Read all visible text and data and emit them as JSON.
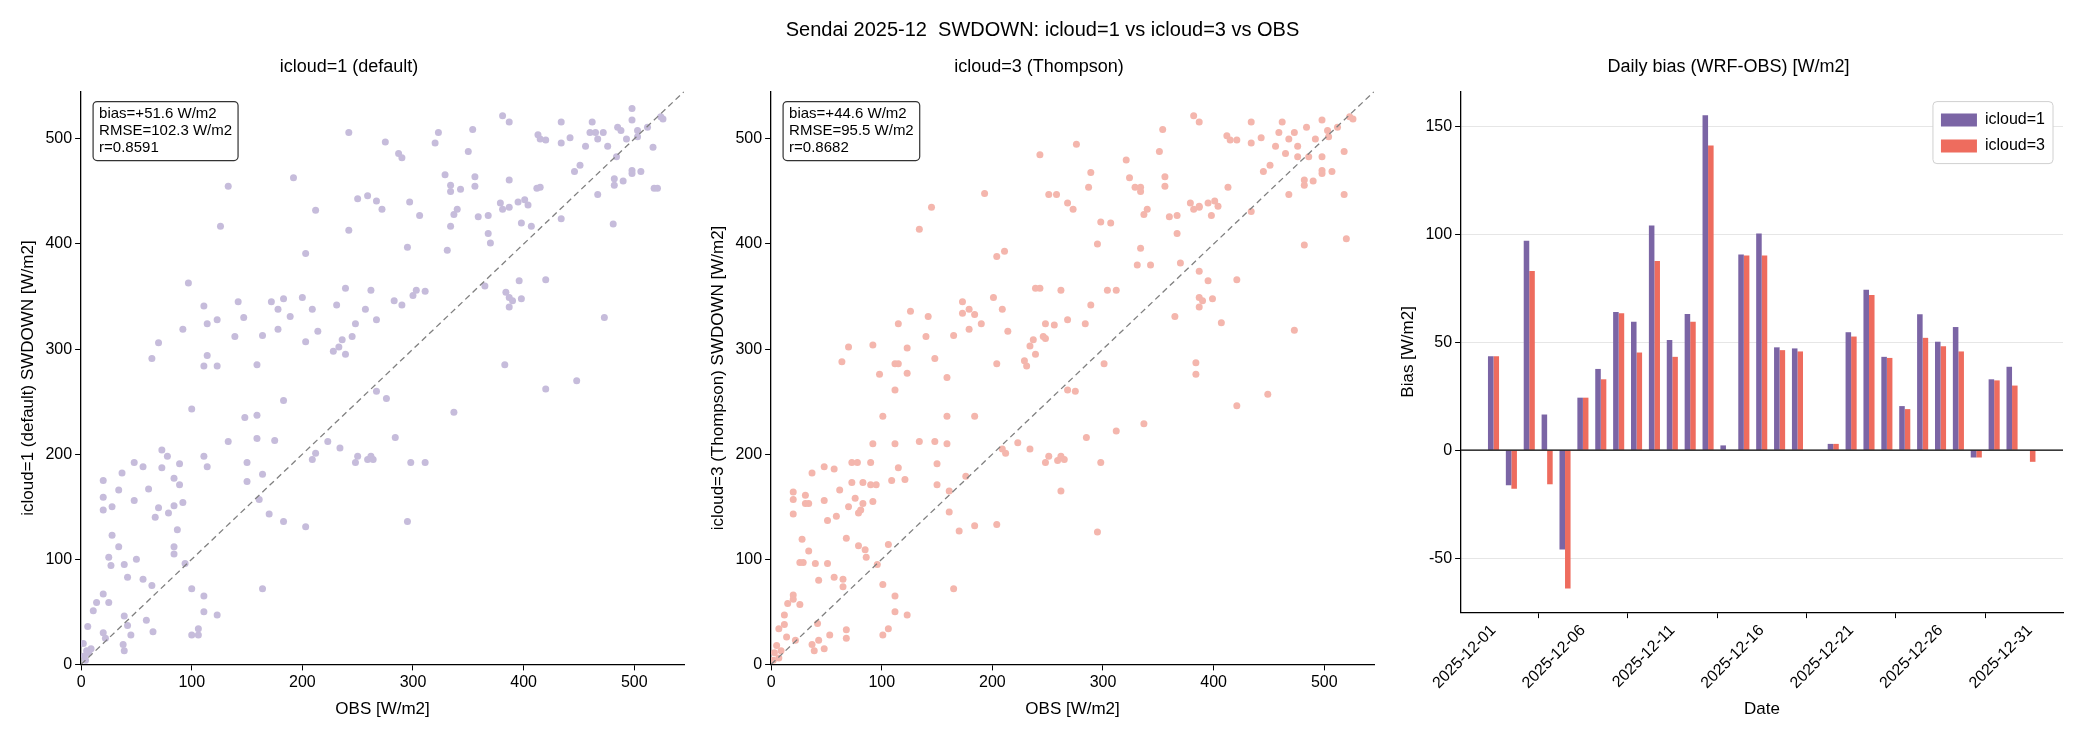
{
  "chart_data": [
    {
      "type": "other",
      "title": "Sendai 2025-12  SWDOWN: icloud=1 vs icloud=3 vs OBS"
    },
    {
      "type": "scatter",
      "title": "icloud=1 (default)",
      "xlabel": "OBS [W/m2]",
      "ylabel": "icloud=1 (default) SWDOWN [W/m2]",
      "xlim": [
        0,
        545
      ],
      "ylim": [
        0,
        545
      ],
      "xticks": [
        0,
        100,
        200,
        300,
        400,
        500
      ],
      "yticks": [
        0,
        100,
        200,
        300,
        400,
        500
      ],
      "marker": "circle",
      "annotations": [
        "bias=+51.6 W/m2\nRMSE=102.3 W/m2\nr=0.8591"
      ],
      "series": [
        {
          "type": "scatter",
          "color": "#c6bcdb",
          "x": [
            3,
            5,
            7,
            2,
            9,
            4,
            6,
            11,
            14,
            20,
            20,
            22,
            25,
            20,
            20,
            20,
            28,
            34,
            28,
            34,
            25,
            27,
            37,
            39,
            42,
            39,
            42,
            38,
            39,
            45,
            48,
            48,
            50,
            56,
            56,
            59,
            61,
            64,
            64,
            65,
            67,
            70,
            70,
            73,
            73,
            78,
            79,
            84,
            84,
            84,
            84,
            87,
            89,
            89,
            92,
            92,
            94,
            97,
            100,
            100,
            100,
            106,
            106,
            111,
            111,
            111,
            111,
            111,
            114,
            114,
            114,
            123,
            123,
            123,
            126,
            133,
            133,
            139,
            142,
            147,
            148,
            150,
            150,
            159,
            159,
            159,
            161,
            164,
            164,
            164,
            170,
            172,
            175,
            178,
            178,
            183,
            183,
            183,
            189,
            192,
            200,
            203,
            203,
            203,
            209,
            209,
            212,
            212,
            214,
            223,
            228,
            231,
            233,
            234,
            236,
            239,
            239,
            242,
            242,
            245,
            248,
            248,
            250,
            250,
            257,
            259,
            259,
            262,
            262,
            264,
            267,
            267,
            267,
            272,
            275,
            276,
            283,
            284,
            287,
            290,
            290,
            295,
            295,
            297,
            298,
            300,
            303,
            306,
            311,
            311,
            320,
            323,
            329,
            331,
            334,
            334,
            334,
            337,
            337,
            340,
            343,
            350,
            354,
            356,
            356,
            359,
            365,
            368,
            368,
            370,
            379,
            381,
            381,
            383,
            384,
            387,
            387,
            387,
            387,
            387,
            390,
            395,
            396,
            398,
            398,
            401,
            404,
            407,
            412,
            413,
            415,
            415,
            420,
            420,
            420,
            434,
            434,
            434,
            442,
            446,
            448,
            451,
            456,
            460,
            462,
            465,
            467,
            467,
            472,
            473,
            476,
            481,
            482,
            482,
            484,
            485,
            488,
            490,
            493,
            498,
            498,
            498,
            498,
            503,
            503,
            506,
            512,
            517,
            518,
            521,
            524,
            526
          ],
          "values": [
            8,
            13,
            11,
            20,
            15,
            4,
            36,
            51,
            59,
            67,
            30,
            25,
            59,
            147,
            159,
            175,
            150,
            166,
            123,
            112,
            102,
            94,
            182,
            95,
            83,
            46,
            37,
            19,
            13,
            28,
            192,
            156,
            100,
            188,
            81,
            42,
            167,
            291,
            75,
            31,
            140,
            306,
            149,
            204,
            187,
            198,
            144,
            177,
            151,
            112,
            105,
            128,
            191,
            171,
            319,
            154,
            96,
            363,
            243,
            72,
            28,
            28,
            34,
            341,
            284,
            198,
            65,
            50,
            324,
            294,
            188,
            328,
            284,
            47,
            417,
            455,
            212,
            312,
            345,
            330,
            235,
            192,
            174,
            285,
            237,
            215,
            157,
            181,
            72,
            313,
            143,
            345,
            213,
            338,
            319,
            348,
            251,
            136,
            331,
            463,
            349,
            307,
            391,
            131,
            338,
            195,
            432,
            201,
            317,
            212,
            298,
            342,
            302,
            206,
            309,
            358,
            295,
            413,
            506,
            312,
            324,
            192,
            443,
            198,
            338,
            446,
            195,
            356,
            198,
            195,
            441,
            328,
            260,
            433,
            497,
            253,
            346,
            216,
            486,
            482,
            342,
            397,
            136,
            440,
            192,
            351,
            356,
            427,
            355,
            192,
            496,
            506,
            466,
            394,
            456,
            450,
            417,
            240,
            428,
            433,
            452,
            488,
            509,
            464,
            455,
            426,
            360,
            427,
            410,
            401,
            439,
            522,
            433,
            285,
            354,
            516,
            461,
            435,
            349,
            340,
            346,
            440,
            365,
            420,
            348,
            442,
            437,
            417,
            453,
            504,
            454,
            500,
            499,
            366,
            262,
            516,
            496,
            424,
            501,
            469,
            270,
            475,
            493,
            506,
            516,
            506,
            500,
            447,
            506,
            330,
            493,
            419,
            462,
            456,
            483,
            511,
            508,
            460,
            500,
            529,
            518,
            470,
            467,
            508,
            502,
            469,
            511,
            492,
            453,
            453,
            521,
            519
          ]
        },
        {
          "type": "line",
          "color": "#808080",
          "line_style": "dashed",
          "marker": "none",
          "x": [
            0,
            545
          ],
          "values": [
            0,
            545
          ]
        }
      ]
    },
    {
      "type": "scatter",
      "title": "icloud=3 (Thompson)",
      "xlabel": "OBS [W/m2]",
      "ylabel": "icloud=3 (Thompson) SWDOWN [W/m2]",
      "xlim": [
        0,
        545
      ],
      "ylim": [
        0,
        545
      ],
      "xticks": [
        0,
        100,
        200,
        300,
        400,
        500
      ],
      "yticks": [
        0,
        100,
        200,
        300,
        400,
        500
      ],
      "marker": "circle",
      "annotations": [
        "bias=+44.6 W/m2\nRMSE=95.5 W/m2\nr=0.8682"
      ],
      "series": [
        {
          "type": "scatter",
          "color": "#f4b6ad",
          "x": [
            3,
            5,
            7,
            2,
            9,
            7,
            12,
            12,
            14,
            15,
            20,
            20,
            22,
            26,
            20,
            20,
            20,
            26,
            28,
            29,
            31,
            31,
            34,
            34,
            37,
            37,
            39,
            40,
            42,
            43,
            43,
            48,
            48,
            48,
            51,
            51,
            53,
            57,
            57,
            59,
            62,
            64,
            65,
            65,
            68,
            68,
            68,
            70,
            70,
            73,
            73,
            76,
            78,
            79,
            79,
            81,
            83,
            83,
            85,
            86,
            90,
            90,
            92,
            92,
            92,
            95,
            96,
            98,
            101,
            101,
            101,
            106,
            106,
            109,
            112,
            112,
            112,
            112,
            112,
            115,
            115,
            115,
            121,
            123,
            123,
            123,
            126,
            134,
            134,
            140,
            142,
            145,
            148,
            148,
            150,
            150,
            159,
            159,
            159,
            161,
            161,
            165,
            165,
            170,
            173,
            173,
            176,
            179,
            179,
            184,
            184,
            184,
            190,
            193,
            201,
            204,
            204,
            204,
            209,
            209,
            211,
            212,
            214,
            223,
            229,
            231,
            234,
            234,
            237,
            239,
            239,
            243,
            243,
            246,
            248,
            248,
            248,
            251,
            251,
            256,
            258,
            259,
            262,
            262,
            262,
            265,
            268,
            268,
            268,
            273,
            275,
            276,
            284,
            285,
            287,
            289,
            289,
            295,
            295,
            298,
            298,
            301,
            304,
            307,
            312,
            312,
            321,
            324,
            329,
            331,
            334,
            334,
            334,
            337,
            337,
            340,
            343,
            351,
            354,
            356,
            356,
            360,
            365,
            367,
            367,
            370,
            379,
            382,
            382,
            384,
            384,
            387,
            387,
            387,
            387,
            387,
            387,
            390,
            395,
            395,
            398,
            399,
            401,
            404,
            407,
            412,
            413,
            415,
            421,
            421,
            421,
            434,
            434,
            434,
            443,
            445,
            449,
            451,
            456,
            459,
            462,
            465,
            468,
            468,
            473,
            473,
            476,
            476,
            482,
            482,
            482,
            484,
            486,
            490,
            492,
            498,
            498,
            498,
            498,
            503,
            504,
            507,
            512,
            518,
            518,
            520,
            523,
            526
          ],
          "values": [
            11,
            18,
            6,
            4,
            13,
            34,
            47,
            38,
            26,
            58,
            66,
            62,
            23,
            57,
            164,
            157,
            143,
            97,
            119,
            97,
            161,
            153,
            153,
            108,
            182,
            19,
            13,
            96,
            39,
            80,
            23,
            156,
            188,
            15,
            137,
            96,
            28,
            186,
            83,
            141,
            166,
            288,
            74,
            81,
            120,
            25,
            33,
            302,
            150,
            192,
            173,
            158,
            192,
            113,
            144,
            147,
            173,
            153,
            109,
            102,
            192,
            171,
            304,
            210,
            155,
            171,
            95,
            276,
            236,
            76,
            28,
            34,
            114,
            175,
            261,
            210,
            65,
            50,
            286,
            286,
            324,
            187,
            176,
            301,
            277,
            47,
            336,
            414,
            212,
            312,
            331,
            435,
            291,
            212,
            191,
            171,
            273,
            236,
            210,
            145,
            165,
            72,
            313,
            127,
            334,
            345,
            179,
            338,
            319,
            333,
            236,
            132,
            324,
            448,
            349,
            286,
            388,
            133,
            338,
            205,
            393,
            201,
            317,
            211,
            289,
            284,
            205,
            303,
            309,
            295,
            358,
            485,
            358,
            312,
            324,
            192,
            310,
            447,
            198,
            323,
            447,
            194,
            356,
            198,
            165,
            195,
            439,
            328,
            261,
            433,
            260,
            495,
            324,
            216,
            454,
            468,
            342,
            400,
            126,
            421,
            192,
            286,
            356,
            420,
            222,
            356,
            480,
            463,
            454,
            380,
            454,
            450,
            396,
            428,
            229,
            433,
            380,
            488,
            509,
            464,
            455,
            426,
            331,
            427,
            410,
            382,
            439,
            522,
            433,
            287,
            276,
            436,
            516,
            435,
            374,
            349,
            340,
            346,
            439,
            365,
            427,
            348,
            441,
            436,
            325,
            503,
            454,
            499,
            499,
            366,
            246,
            516,
            496,
            431,
            501,
            469,
            257,
            475,
            493,
            506,
            516,
            486,
            500,
            447,
            506,
            318,
            493,
            483,
            456,
            461,
            399,
            511,
            483,
            460,
            500,
            518,
            483,
            470,
            467,
            508,
            502,
            469,
            511,
            488,
            447,
            405,
            521,
            519
          ]
        },
        {
          "type": "line",
          "color": "#808080",
          "line_style": "dashed",
          "marker": "none",
          "x": [
            0,
            545
          ],
          "values": [
            0,
            545
          ]
        }
      ]
    },
    {
      "type": "bar",
      "title": "Daily bias (WRF-OBS) [W/m2]",
      "xlabel": "Date",
      "ylabel": "Bias [W/m2]",
      "x": [
        "2025-12-01",
        "2025-12-02",
        "2025-12-03",
        "2025-12-04",
        "2025-12-05",
        "2025-12-06",
        "2025-12-07",
        "2025-12-08",
        "2025-12-09",
        "2025-12-10",
        "2025-12-11",
        "2025-12-12",
        "2025-12-13",
        "2025-12-14",
        "2025-12-15",
        "2025-12-16",
        "2025-12-17",
        "2025-12-18",
        "2025-12-19",
        "2025-12-20",
        "2025-12-21",
        "2025-12-22",
        "2025-12-23",
        "2025-12-24",
        "2025-12-25",
        "2025-12-26",
        "2025-12-27",
        "2025-12-28",
        "2025-12-29",
        "2025-12-30",
        "2025-12-31"
      ],
      "xlim": [
        "2025-11-29T04:30",
        "2026-01-01T20:24"
      ],
      "xticks": [
        "2025-12-01",
        "2025-12-06",
        "2025-12-11",
        "2025-12-16",
        "2025-12-21",
        "2025-12-26",
        "2025-12-31"
      ],
      "ylim": [
        -75,
        166
      ],
      "yticks": [
        -50,
        0,
        50,
        100,
        150
      ],
      "grid": "y",
      "legend": "top right",
      "ref_lines": [
        {
          "axis": "y",
          "value": 0,
          "color": "#000000"
        }
      ],
      "series": [
        {
          "name": "icloud=1",
          "color": "#7b65a5",
          "values": [
            43.5,
            -16.2,
            97,
            16.5,
            -46,
            24.3,
            37.6,
            64,
            59.5,
            104,
            51,
            63,
            155,
            2.2,
            90.6,
            100.3,
            47.6,
            47.1,
            null,
            2.9,
            54.6,
            74.3,
            43.2,
            20.4,
            62.9,
            50.2,
            57,
            -3.4,
            32.8,
            38.6,
            null
          ]
        },
        {
          "name": "icloud=3",
          "color": "#ee6c5e",
          "values": [
            43.5,
            -17.9,
            83,
            -15.8,
            -64,
            24.3,
            32.8,
            63.4,
            45.2,
            87.6,
            43.2,
            59.5,
            141,
            null,
            90.1,
            90.1,
            46.3,
            45.7,
            null,
            2.9,
            52.6,
            71.8,
            42.7,
            19,
            52,
            48.1,
            45.7,
            -3.4,
            32.3,
            29.9,
            -5.4
          ]
        }
      ]
    }
  ]
}
